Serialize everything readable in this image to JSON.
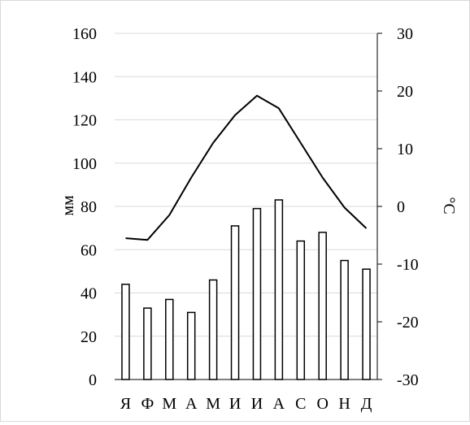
{
  "chart_data": {
    "type": "bar",
    "title": "",
    "categories": [
      "Я",
      "Ф",
      "М",
      "А",
      "М",
      "И",
      "И",
      "А",
      "С",
      "О",
      "Н",
      "Д"
    ],
    "series": [
      {
        "type": "bar",
        "axis": "left",
        "values": [
          44,
          33,
          37,
          31,
          46,
          71,
          79,
          83,
          64,
          68,
          55,
          51
        ],
        "color": "#ffffff",
        "stroke": "#000000"
      },
      {
        "type": "line",
        "axis": "right",
        "values": [
          -5.5,
          -5.8,
          -1.5,
          5,
          11,
          15.8,
          19.2,
          17,
          11,
          5,
          -0.2,
          -3.8
        ],
        "color": "#000000"
      }
    ],
    "ylabel": "мм",
    "ylabel_right": "°C",
    "xlabel": "",
    "ylim": [
      0,
      160
    ],
    "ylim_right": [
      -30,
      30
    ],
    "yticks": [
      0,
      20,
      40,
      60,
      80,
      100,
      120,
      140,
      160
    ],
    "yticks_right": [
      -30,
      -20,
      -10,
      0,
      10,
      20,
      30
    ],
    "grid": true,
    "legend": "none"
  }
}
